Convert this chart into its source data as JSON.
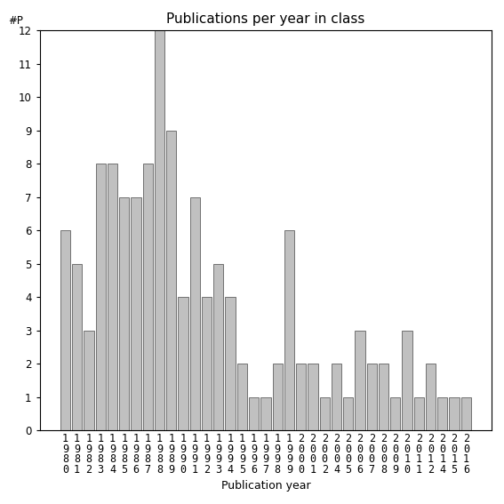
{
  "title": "Publications per year in class",
  "xlabel": "Publication year",
  "ylabel": "#P",
  "categories": [
    "1980",
    "1981",
    "1982",
    "1983",
    "1984",
    "1985",
    "1986",
    "1987",
    "1988",
    "1989",
    "1990",
    "1991",
    "1992",
    "1993",
    "1994",
    "1995",
    "1996",
    "1997",
    "1998",
    "1999",
    "2000",
    "2001",
    "2002",
    "2004",
    "2005",
    "2006",
    "2007",
    "2008",
    "2009",
    "2010",
    "2011",
    "2012",
    "2014",
    "2015",
    "2016"
  ],
  "values": [
    6,
    5,
    3,
    8,
    8,
    7,
    7,
    8,
    12,
    9,
    4,
    7,
    4,
    5,
    4,
    2,
    1,
    1,
    2,
    6,
    2,
    2,
    1,
    2,
    1,
    3,
    2,
    2,
    1,
    3,
    1,
    2,
    1,
    1,
    1
  ],
  "bar_color": "#c0c0c0",
  "bar_edge_color": "#606060",
  "ylim": [
    0,
    12
  ],
  "yticks": [
    0,
    1,
    2,
    3,
    4,
    5,
    6,
    7,
    8,
    9,
    10,
    11,
    12
  ],
  "background_color": "#ffffff",
  "title_fontsize": 11,
  "axis_label_fontsize": 9,
  "tick_fontsize": 8.5
}
